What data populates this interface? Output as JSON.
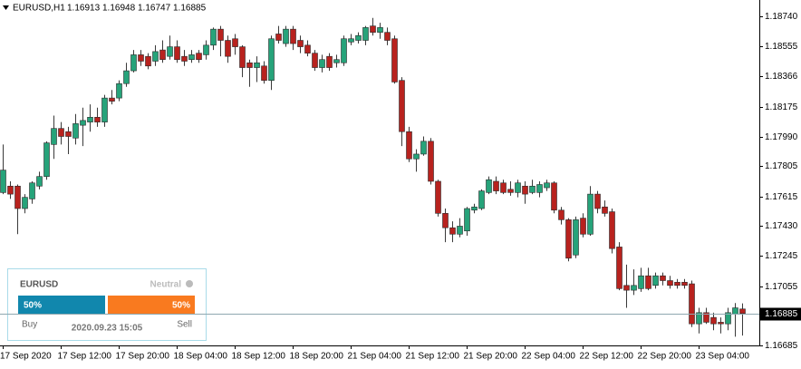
{
  "chart_data": {
    "type": "candlestick",
    "title": "EURUSD,H1",
    "categories": [
      "17 Sep 2020",
      null,
      null,
      null,
      null,
      null,
      null,
      null,
      "17 Sep 12:00",
      null,
      null,
      null,
      null,
      null,
      null,
      null,
      "17 Sep 20:00",
      null,
      null,
      null,
      null,
      null,
      null,
      null,
      "18 Sep 04:00",
      null,
      null,
      null,
      null,
      null,
      null,
      null,
      "18 Sep 12:00",
      null,
      null,
      null,
      null,
      null,
      null,
      null,
      "18 Sep 20:00",
      null,
      null,
      null,
      null,
      null,
      null,
      null,
      "21 Sep 04:00",
      null,
      null,
      null,
      null,
      null,
      null,
      null,
      "21 Sep 12:00",
      null,
      null,
      null,
      null,
      null,
      null,
      null,
      "21 Sep 20:00",
      null,
      null,
      null,
      null,
      null,
      null,
      null,
      "22 Sep 04:00",
      null,
      null,
      null,
      null,
      null,
      null,
      null,
      "22 Sep 12:00",
      null,
      null,
      null,
      null,
      null,
      null,
      null,
      "22 Sep 20:00",
      null,
      null,
      null,
      null,
      null,
      null,
      null,
      "23 Sep 04:00",
      null,
      null,
      null,
      null,
      null,
      null
    ],
    "open": [
      1.1764,
      1.1768,
      1.1768,
      1.1754,
      1.176,
      1.1768,
      1.1774,
      1.1794,
      1.1804,
      1.1802,
      1.1798,
      1.1806,
      1.1808,
      1.1811,
      1.1808,
      1.1823,
      1.1823,
      1.1832,
      1.184,
      1.185,
      1.1849,
      1.1846,
      1.1853,
      1.1849,
      1.1855,
      1.1849,
      1.1847,
      1.1851,
      1.185,
      1.1856,
      1.1866,
      1.1859,
      1.186,
      1.1855,
      1.1845,
      1.1842,
      1.1843,
      1.1834,
      1.1863,
      1.1857,
      1.1866,
      1.1859,
      1.1856,
      1.1851,
      1.1842,
      1.1849,
      1.1845,
      1.1845,
      1.1858,
      1.1859,
      1.1859,
      1.1868,
      1.1864,
      1.1864,
      1.186,
      1.1834,
      1.1802,
      1.1785,
      1.1788,
      1.1796,
      1.1771,
      1.1751,
      1.1742,
      1.1738,
      1.174,
      1.1753,
      1.1754,
      1.1764,
      1.1771,
      1.177,
      1.1766,
      1.1764,
      1.1768,
      1.1764,
      1.1764,
      1.1767,
      1.177,
      1.1753,
      1.1747,
      1.1725,
      1.1748,
      1.1738,
      1.1763,
      1.1755,
      1.1752,
      1.173,
      1.1706,
      1.1703,
      1.1704,
      1.1712,
      1.1706,
      1.1712,
      1.1709,
      1.1708,
      1.1708,
      1.1707,
      1.1682,
      1.1689,
      1.1686,
      1.1683,
      1.1682,
      1.1688,
      1.16913
    ],
    "high": [
      1.1794,
      1.1771,
      1.1769,
      1.1763,
      1.1771,
      1.1777,
      1.1796,
      1.1812,
      1.1808,
      1.1805,
      1.1813,
      1.1817,
      1.1819,
      1.1817,
      1.1825,
      1.1828,
      1.1834,
      1.1845,
      1.1853,
      1.1853,
      1.1851,
      1.1856,
      1.1859,
      1.1862,
      1.1859,
      1.1853,
      1.1853,
      1.1853,
      1.1859,
      1.1867,
      1.1868,
      1.1862,
      1.1863,
      1.1856,
      1.1847,
      1.1849,
      1.1846,
      1.1862,
      1.1868,
      1.1868,
      1.1868,
      1.1862,
      1.1859,
      1.1853,
      1.185,
      1.1851,
      1.185,
      1.1862,
      1.1863,
      1.1864,
      1.1868,
      1.1873,
      1.187,
      1.1867,
      1.1862,
      1.1836,
      1.1805,
      1.1791,
      1.1799,
      1.1798,
      1.1772,
      1.1754,
      1.1746,
      1.1748,
      1.1755,
      1.1757,
      1.1766,
      1.1774,
      1.1774,
      1.1772,
      1.1771,
      1.1772,
      1.1771,
      1.1772,
      1.1771,
      1.1772,
      1.1771,
      1.1755,
      1.1748,
      1.1749,
      1.1751,
      1.1768,
      1.1765,
      1.1759,
      1.1754,
      1.1733,
      1.1719,
      1.1716,
      1.1717,
      1.1717,
      1.1714,
      1.1714,
      1.1712,
      1.171,
      1.171,
      1.1709,
      1.1692,
      1.1692,
      1.1689,
      1.1686,
      1.1692,
      1.1695,
      1.16948
    ],
    "low": [
      1.1763,
      1.176,
      1.1738,
      1.1751,
      1.1757,
      1.1766,
      1.1772,
      1.1785,
      1.1794,
      1.1788,
      1.1794,
      1.1793,
      1.1802,
      1.1805,
      1.1805,
      1.1819,
      1.1821,
      1.183,
      1.1839,
      1.1843,
      1.1841,
      1.1843,
      1.1845,
      1.1847,
      1.1845,
      1.1843,
      1.1845,
      1.1845,
      1.1847,
      1.1853,
      1.1849,
      1.1845,
      1.185,
      1.1836,
      1.183,
      1.1833,
      1.1832,
      1.1828,
      1.1857,
      1.1855,
      1.1853,
      1.1851,
      1.1849,
      1.184,
      1.1839,
      1.184,
      1.1842,
      1.1843,
      1.1856,
      1.1857,
      1.1856,
      1.1862,
      1.186,
      1.1856,
      1.1832,
      1.1793,
      1.1783,
      1.1777,
      1.1787,
      1.1769,
      1.1749,
      1.1733,
      1.1733,
      1.1736,
      1.1737,
      1.1751,
      1.1753,
      1.1763,
      1.1763,
      1.1763,
      1.1762,
      1.1761,
      1.1757,
      1.1763,
      1.1761,
      1.1765,
      1.1751,
      1.1744,
      1.1721,
      1.1723,
      1.1736,
      1.1737,
      1.1751,
      1.1749,
      1.1726,
      1.1703,
      1.1692,
      1.17,
      1.1702,
      1.1703,
      1.1704,
      1.1706,
      1.1704,
      1.1704,
      1.1704,
      1.168,
      1.1676,
      1.1682,
      1.1678,
      1.1676,
      1.1678,
      1.1674,
      1.16747
    ],
    "close": [
      1.1778,
      1.1763,
      1.1754,
      1.1761,
      1.177,
      1.1774,
      1.1795,
      1.1804,
      1.1799,
      1.1799,
      1.1807,
      1.1809,
      1.1811,
      1.1808,
      1.1823,
      1.1821,
      1.1832,
      1.184,
      1.185,
      1.1846,
      1.1843,
      1.1852,
      1.1847,
      1.1855,
      1.1847,
      1.1846,
      1.185,
      1.1847,
      1.1856,
      1.1866,
      1.1859,
      1.1849,
      1.1855,
      1.1842,
      1.1842,
      1.1845,
      1.1834,
      1.186,
      1.1859,
      1.1866,
      1.1857,
      1.1855,
      1.1851,
      1.1842,
      1.1847,
      1.1842,
      1.1847,
      1.186,
      1.186,
      1.1862,
      1.1867,
      1.1864,
      1.1867,
      1.1859,
      1.1833,
      1.1802,
      1.1785,
      1.1788,
      1.1796,
      1.1771,
      1.1751,
      1.1742,
      1.1738,
      1.1743,
      1.1754,
      1.1755,
      1.1765,
      1.1772,
      1.1765,
      1.1764,
      1.1764,
      1.177,
      1.1763,
      1.1768,
      1.1769,
      1.177,
      1.1753,
      1.1747,
      1.1723,
      1.1747,
      1.1738,
      1.1763,
      1.1754,
      1.1751,
      1.1729,
      1.1704,
      1.1703,
      1.1706,
      1.1712,
      1.1704,
      1.1712,
      1.1709,
      1.1706,
      1.1706,
      1.1706,
      1.1682,
      1.1689,
      1.1683,
      1.1682,
      1.1682,
      1.1689,
      1.1692,
      1.16885
    ],
    "up_color": "#26a37a",
    "down_color": "#b8221e",
    "ylim": [
      1.16674,
      1.18842
    ],
    "yticks": [
      {
        "value": 1.1874,
        "label": "1.18740"
      },
      1.18555,
      1.18366,
      1.18175,
      {
        "value": 1.1799,
        "label": "1.17990"
      },
      1.17805,
      1.17615,
      {
        "value": 1.1743,
        "label": "1.17430"
      },
      1.17245,
      1.17055,
      1.16685
    ],
    "grid": false
  },
  "widget": {
    "symbol": "EURUSD",
    "status": "Neutral",
    "values": [
      50,
      50
    ],
    "value_labels": [
      "50%",
      "50%"
    ],
    "colors": [
      "#1187ad",
      "#f97a1f"
    ],
    "buy_label": "Buy",
    "sell_label": "Sell",
    "time": "2020.09.23 15:05"
  }
}
